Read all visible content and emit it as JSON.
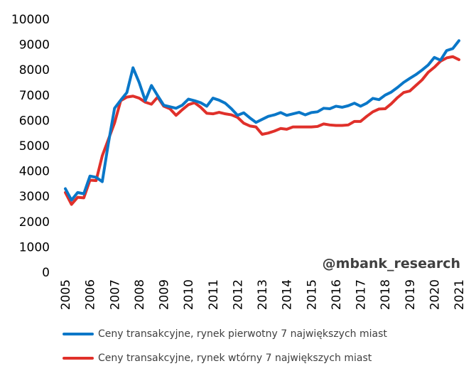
{
  "watermark": "@mbank_research",
  "colors": {
    "primary": "#0a77c8",
    "secondary": "#e0302a"
  },
  "chart_data": {
    "type": "line",
    "title": "",
    "xlabel": "",
    "ylabel": "",
    "ylim": [
      0,
      10000
    ],
    "y_ticks": [
      "0",
      "1000",
      "2000",
      "3000",
      "4000",
      "5000",
      "6000",
      "7000",
      "8000",
      "9000",
      "10000"
    ],
    "x_ticks": [
      "2005",
      "2006",
      "2007",
      "2008",
      "2009",
      "2010",
      "2011",
      "2012",
      "2013",
      "2014",
      "2015",
      "2016",
      "2017",
      "2018",
      "2019",
      "2020",
      "2021"
    ],
    "x_start": 2005,
    "x_step": 0.25,
    "grid": false,
    "legend": "bottom",
    "series": [
      {
        "name": "Ceny transakcyjne, rynek pierwotny 7 największych miast",
        "color": "#0a77c8",
        "values": [
          3300,
          2850,
          3150,
          3100,
          3800,
          3750,
          3580,
          5100,
          6480,
          6800,
          7100,
          8080,
          7500,
          6780,
          7380,
          6980,
          6600,
          6540,
          6480,
          6600,
          6840,
          6780,
          6700,
          6560,
          6880,
          6800,
          6680,
          6460,
          6200,
          6300,
          6100,
          5920,
          6040,
          6160,
          6220,
          6310,
          6200,
          6260,
          6320,
          6220,
          6310,
          6340,
          6480,
          6460,
          6560,
          6520,
          6580,
          6680,
          6560,
          6680,
          6870,
          6820,
          7000,
          7120,
          7300,
          7500,
          7660,
          7810,
          7990,
          8190,
          8490,
          8380,
          8760,
          8840,
          9150
        ]
      },
      {
        "name": "Ceny transakcyjne, rynek wtórny 7 największych miast",
        "color": "#e0302a",
        "values": [
          3150,
          2680,
          2960,
          2940,
          3640,
          3620,
          4600,
          5250,
          5900,
          6780,
          6920,
          6960,
          6880,
          6720,
          6640,
          6920,
          6560,
          6460,
          6200,
          6420,
          6620,
          6700,
          6520,
          6280,
          6260,
          6320,
          6260,
          6220,
          6120,
          5890,
          5780,
          5740,
          5450,
          5500,
          5580,
          5680,
          5650,
          5740,
          5740,
          5740,
          5740,
          5760,
          5860,
          5820,
          5800,
          5800,
          5820,
          5960,
          5960,
          6160,
          6340,
          6450,
          6460,
          6660,
          6900,
          7100,
          7160,
          7380,
          7600,
          7900,
          8100,
          8340,
          8470,
          8520,
          8400
        ]
      }
    ]
  }
}
